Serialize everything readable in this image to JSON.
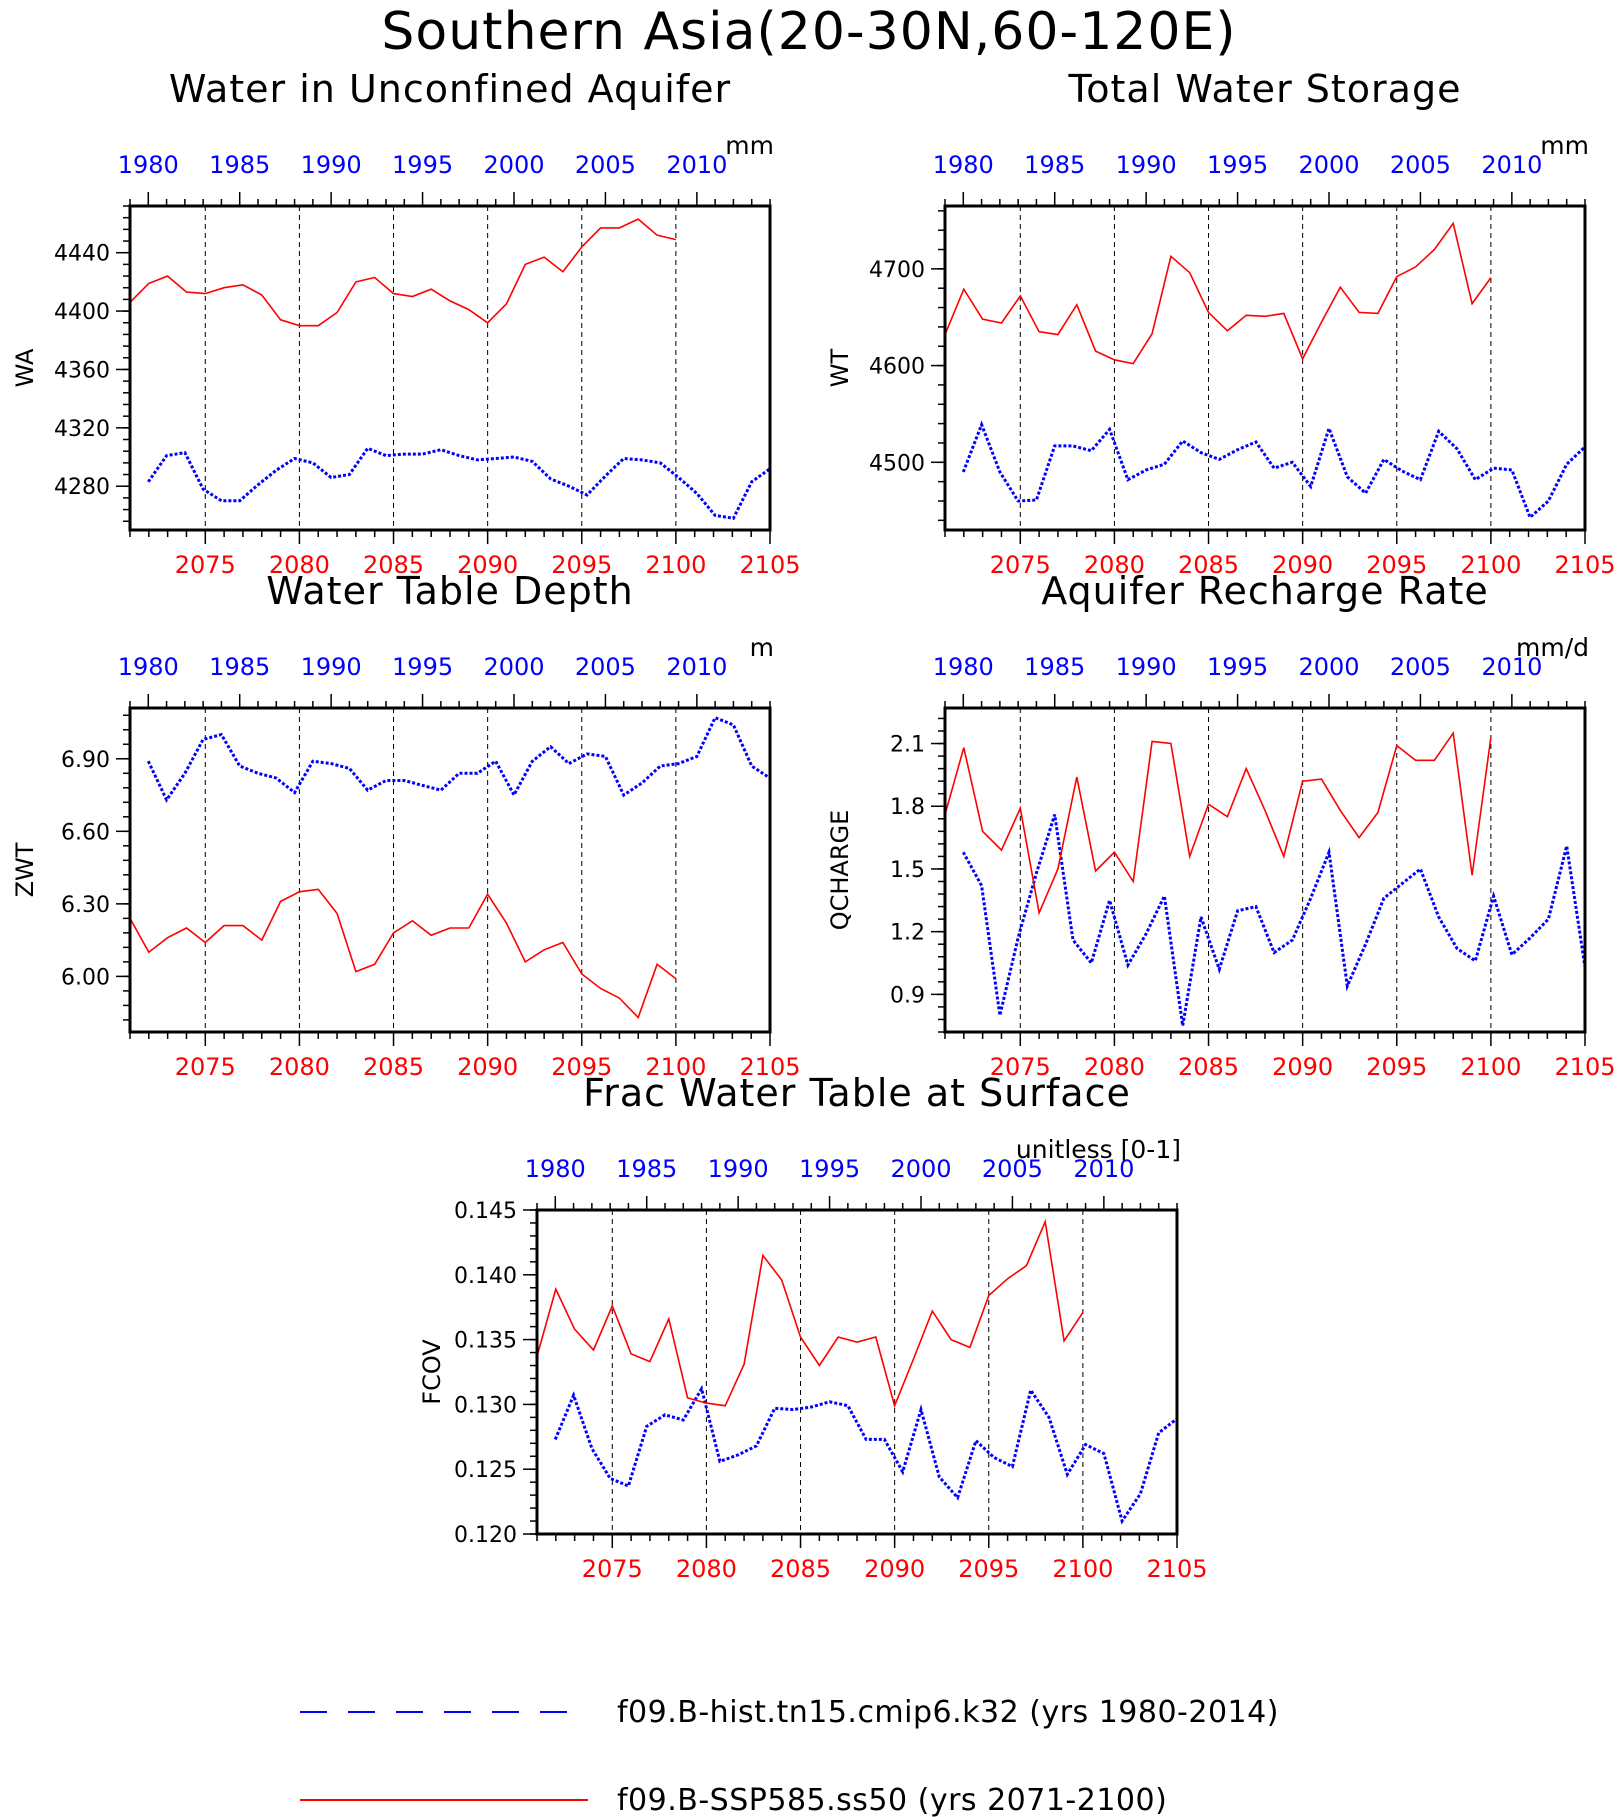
{
  "title": "Southern Asia(20-30N,60-120E)",
  "colors": {
    "hist": "#0000ff",
    "ssp": "#ff0000",
    "axis": "#000000"
  },
  "legend": [
    {
      "label": "f09.B-hist.tn15.cmip6.k32 (yrs 1980-2014)",
      "color": "#0000ff",
      "style": "dashed"
    },
    {
      "label": "f09.B-SSP585.ss50 (yrs 2071-2100)",
      "color": "#ff0000",
      "style": "solid"
    }
  ],
  "chart_data": [
    {
      "type": "line",
      "title": "Water in Unconfined Aquifer",
      "ylabel": "WA",
      "units": "mm",
      "ylim": [
        4250,
        4472
      ],
      "yticks": [
        4280,
        4320,
        4360,
        4400,
        4440
      ],
      "ytick_labels": [
        "4280",
        "4320",
        "4360",
        "4400",
        "4440"
      ],
      "x_top": {
        "range": [
          1979,
          2014
        ],
        "ticks": [
          1980,
          1985,
          1990,
          1995,
          2000,
          2005,
          2010
        ]
      },
      "x_bottom": {
        "range": [
          2071,
          2105
        ],
        "ticks": [
          2075,
          2080,
          2085,
          2090,
          2095,
          2100,
          2105
        ]
      },
      "series": [
        {
          "name": "f09.B-hist.tn15.cmip6.k32 (yrs 1980-2014)",
          "values": [
            4283,
            4301,
            4303,
            4278,
            4270,
            4270,
            4281,
            4291,
            4299,
            4296,
            4286,
            4288,
            4306,
            4301,
            4302,
            4302,
            4305,
            4301,
            4298,
            4299,
            4300,
            4297,
            4285,
            4280,
            4274,
            4287,
            4299,
            4298,
            4296,
            4286,
            4275,
            4260,
            4258,
            4283,
            4292
          ]
        },
        {
          "name": "f09.B-SSP585.ss50 (yrs 2071-2100)",
          "values": [
            4406,
            4419,
            4424,
            4413,
            4412,
            4416,
            4418,
            4411,
            4394,
            4390,
            4390,
            4399,
            4420,
            4423,
            4412,
            4410,
            4415,
            4407,
            4401,
            4392,
            4405,
            4432,
            4437,
            4427,
            4444,
            4457,
            4457,
            4463,
            4452,
            4449
          ]
        }
      ]
    },
    {
      "type": "line",
      "title": "Total Water Storage",
      "ylabel": "WT",
      "units": "mm",
      "ylim": [
        4430,
        4765
      ],
      "yticks": [
        4500,
        4600,
        4700
      ],
      "ytick_labels": [
        "4500",
        "4600",
        "4700"
      ],
      "x_top": {
        "range": [
          1979,
          2014
        ],
        "ticks": [
          1980,
          1985,
          1990,
          1995,
          2000,
          2005,
          2010
        ]
      },
      "x_bottom": {
        "range": [
          2071,
          2105
        ],
        "ticks": [
          2075,
          2080,
          2085,
          2090,
          2095,
          2100,
          2105
        ]
      },
      "series": [
        {
          "name": "f09.B-hist.tn15.cmip6.k32 (yrs 1980-2014)",
          "values": [
            4490,
            4539,
            4490,
            4460,
            4461,
            4517,
            4517,
            4512,
            4534,
            4482,
            4492,
            4498,
            4522,
            4510,
            4503,
            4513,
            4521,
            4494,
            4500,
            4475,
            4535,
            4485,
            4468,
            4503,
            4491,
            4482,
            4532,
            4514,
            4482,
            4494,
            4492,
            4443,
            4460,
            4498,
            4516
          ]
        },
        {
          "name": "f09.B-SSP585.ss50 (yrs 2071-2100)",
          "values": [
            4632,
            4679,
            4648,
            4644,
            4672,
            4635,
            4632,
            4663,
            4615,
            4606,
            4602,
            4633,
            4713,
            4696,
            4655,
            4636,
            4652,
            4651,
            4654,
            4607,
            4645,
            4681,
            4655,
            4654,
            4692,
            4702,
            4720,
            4747,
            4664,
            4691
          ]
        }
      ]
    },
    {
      "type": "line",
      "title": "Water Table Depth",
      "ylabel": "ZWT",
      "units": "m",
      "ylim": [
        5.77,
        7.11
      ],
      "yticks": [
        6.0,
        6.3,
        6.6,
        6.9
      ],
      "ytick_labels": [
        "6.00",
        "6.30",
        "6.60",
        "6.90"
      ],
      "x_top": {
        "range": [
          1979,
          2014
        ],
        "ticks": [
          1980,
          1985,
          1990,
          1995,
          2000,
          2005,
          2010
        ]
      },
      "x_bottom": {
        "range": [
          2071,
          2105
        ],
        "ticks": [
          2075,
          2080,
          2085,
          2090,
          2095,
          2100,
          2105
        ]
      },
      "series": [
        {
          "name": "f09.B-hist.tn15.cmip6.k32 (yrs 1980-2014)",
          "values": [
            6.89,
            6.73,
            6.84,
            6.98,
            7.0,
            6.87,
            6.84,
            6.82,
            6.76,
            6.89,
            6.88,
            6.86,
            6.77,
            6.81,
            6.81,
            6.79,
            6.77,
            6.84,
            6.84,
            6.89,
            6.75,
            6.89,
            6.95,
            6.88,
            6.92,
            6.91,
            6.75,
            6.8,
            6.87,
            6.88,
            6.91,
            7.07,
            7.04,
            6.87,
            6.82
          ]
        },
        {
          "name": "f09.B-SSP585.ss50 (yrs 2071-2100)",
          "values": [
            6.24,
            6.1,
            6.16,
            6.2,
            6.14,
            6.21,
            6.21,
            6.15,
            6.31,
            6.35,
            6.36,
            6.26,
            6.02,
            6.05,
            6.18,
            6.23,
            6.17,
            6.2,
            6.2,
            6.34,
            6.22,
            6.06,
            6.11,
            6.14,
            6.01,
            5.95,
            5.91,
            5.83,
            6.05,
            5.99
          ]
        }
      ]
    },
    {
      "type": "line",
      "title": "Aquifer Recharge Rate",
      "ylabel": "QCHARGE",
      "units": "mm/d",
      "ylim": [
        0.72,
        2.27
      ],
      "yticks": [
        0.9,
        1.2,
        1.5,
        1.8,
        2.1
      ],
      "ytick_labels": [
        "0.9",
        "1.2",
        "1.5",
        "1.8",
        "2.1"
      ],
      "x_top": {
        "range": [
          1979,
          2014
        ],
        "ticks": [
          1980,
          1985,
          1990,
          1995,
          2000,
          2005,
          2010
        ]
      },
      "x_bottom": {
        "range": [
          2071,
          2105
        ],
        "ticks": [
          2075,
          2080,
          2085,
          2090,
          2095,
          2100,
          2105
        ]
      },
      "series": [
        {
          "name": "f09.B-hist.tn15.cmip6.k32 (yrs 1980-2014)",
          "values": [
            1.58,
            1.42,
            0.8,
            1.17,
            1.48,
            1.76,
            1.16,
            1.05,
            1.35,
            1.04,
            1.19,
            1.37,
            0.75,
            1.27,
            1.02,
            1.3,
            1.32,
            1.1,
            1.16,
            1.36,
            1.58,
            0.94,
            1.14,
            1.36,
            1.43,
            1.5,
            1.27,
            1.12,
            1.06,
            1.37,
            1.09,
            1.17,
            1.26,
            1.61,
            1.03
          ]
        },
        {
          "name": "f09.B-SSP585.ss50 (yrs 2071-2100)",
          "values": [
            1.76,
            2.08,
            1.68,
            1.59,
            1.79,
            1.29,
            1.5,
            1.94,
            1.49,
            1.58,
            1.44,
            2.11,
            2.1,
            1.56,
            1.81,
            1.75,
            1.98,
            1.78,
            1.56,
            1.92,
            1.93,
            1.78,
            1.65,
            1.77,
            2.09,
            2.02,
            2.02,
            2.15,
            1.47,
            2.13
          ]
        }
      ]
    },
    {
      "type": "line",
      "title": "Frac Water Table at Surface",
      "ylabel": "FCOV",
      "units": "unitless [0-1]",
      "ylim": [
        0.12,
        0.145
      ],
      "yticks": [
        0.12,
        0.125,
        0.13,
        0.135,
        0.14,
        0.145
      ],
      "ytick_labels": [
        "0.120",
        "0.125",
        "0.130",
        "0.135",
        "0.140",
        "0.145"
      ],
      "x_top": {
        "range": [
          1979,
          2014
        ],
        "ticks": [
          1980,
          1985,
          1990,
          1995,
          2000,
          2005,
          2010
        ]
      },
      "x_bottom": {
        "range": [
          2071,
          2105
        ],
        "ticks": [
          2075,
          2080,
          2085,
          2090,
          2095,
          2100,
          2105
        ]
      },
      "series": [
        {
          "name": "f09.B-hist.tn15.cmip6.k32 (yrs 1980-2014)",
          "values": [
            0.1273,
            0.1307,
            0.1266,
            0.1243,
            0.1237,
            0.1283,
            0.1292,
            0.1288,
            0.1312,
            0.1256,
            0.1261,
            0.1268,
            0.1297,
            0.1296,
            0.1298,
            0.1302,
            0.1299,
            0.1273,
            0.1273,
            0.1248,
            0.1296,
            0.1244,
            0.1228,
            0.1272,
            0.1259,
            0.1252,
            0.1311,
            0.129,
            0.1246,
            0.1269,
            0.1262,
            0.121,
            0.1231,
            0.1278,
            0.1289
          ]
        },
        {
          "name": "f09.B-SSP585.ss50 (yrs 2071-2100)",
          "values": [
            0.1337,
            0.1389,
            0.1358,
            0.1342,
            0.1376,
            0.1339,
            0.1333,
            0.1366,
            0.1305,
            0.1301,
            0.1299,
            0.1331,
            0.1415,
            0.1396,
            0.1352,
            0.133,
            0.1352,
            0.1348,
            0.1352,
            0.1299,
            0.1335,
            0.1372,
            0.135,
            0.1344,
            0.1384,
            0.1397,
            0.1407,
            0.1441,
            0.1349,
            0.1371
          ]
        }
      ]
    }
  ]
}
